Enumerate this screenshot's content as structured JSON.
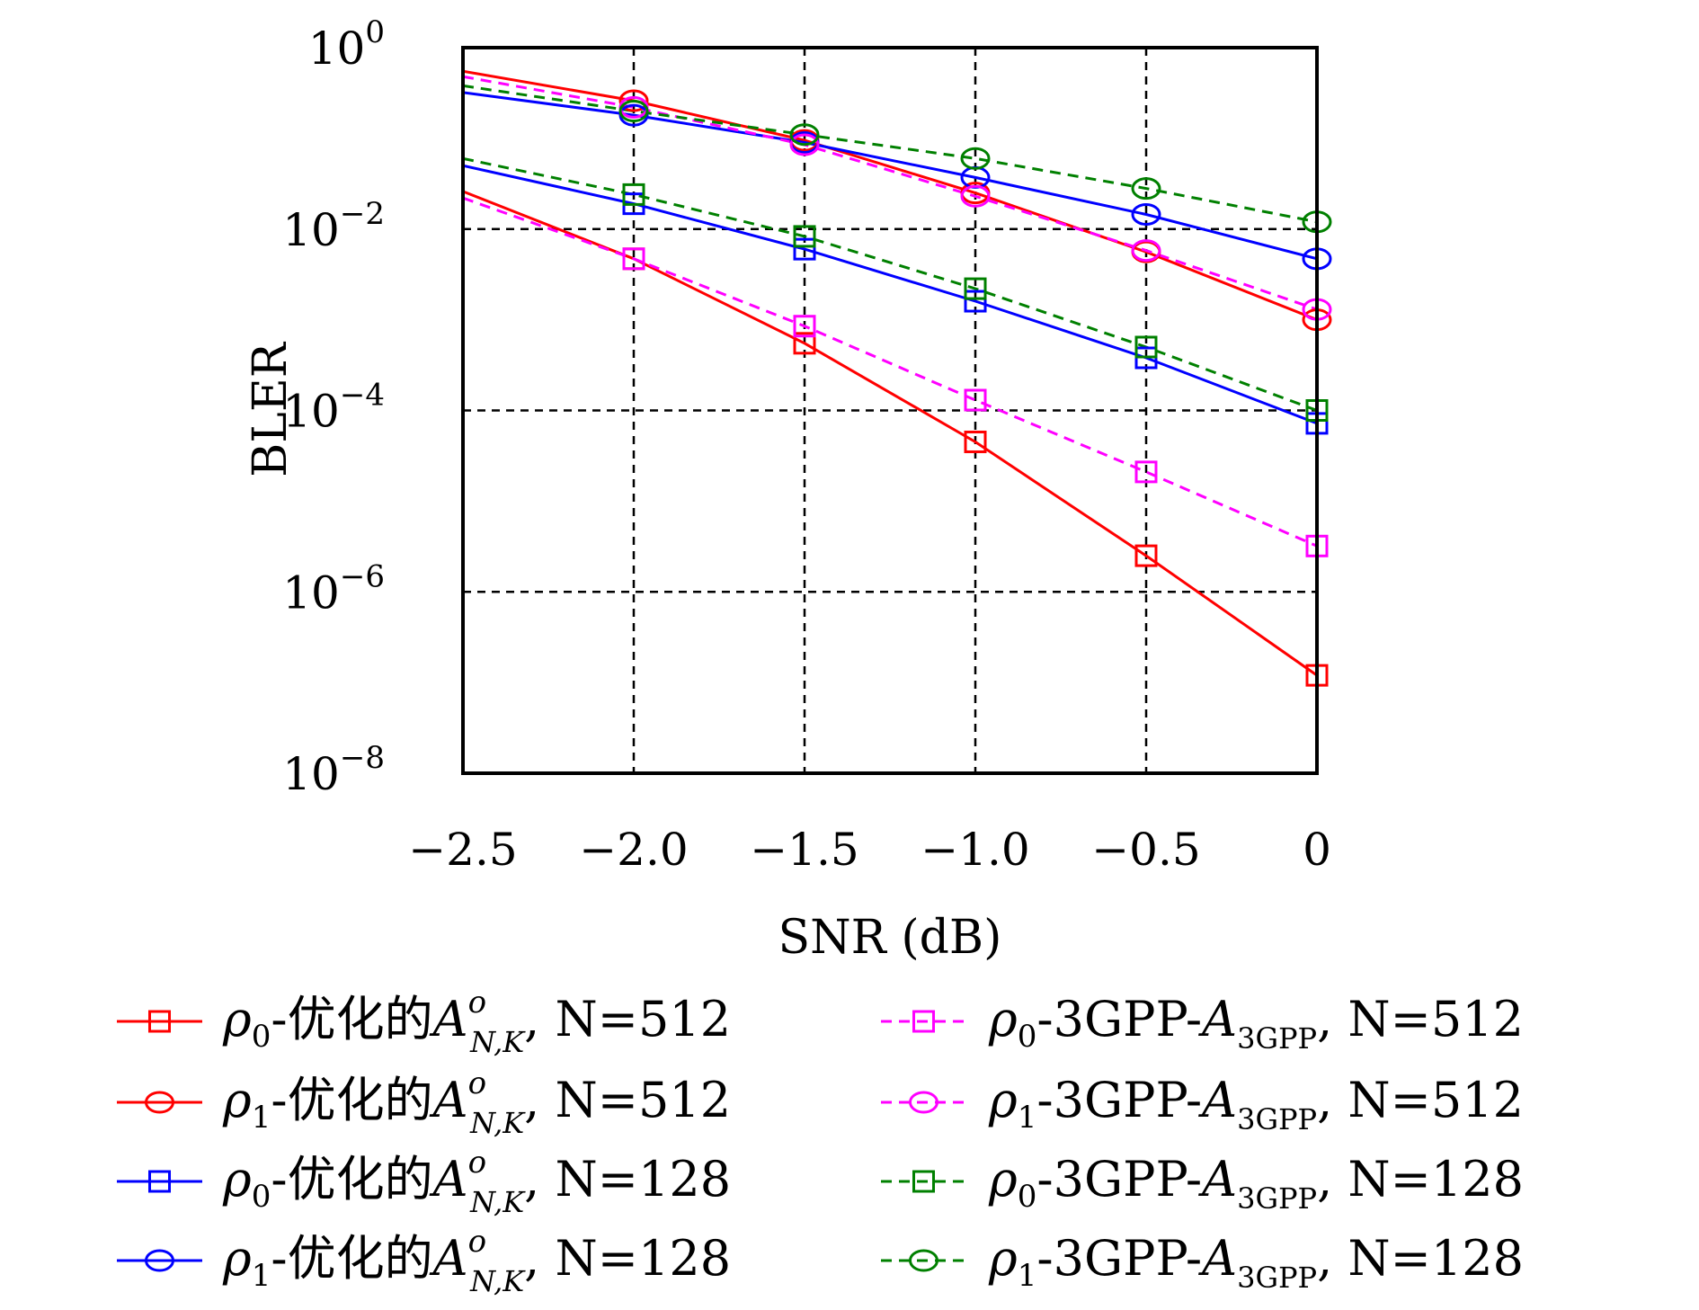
{
  "chart_data": {
    "type": "line",
    "xlabel": "SNR (dB)",
    "ylabel": "BLER",
    "xlim": [
      -2.5,
      0
    ],
    "ylim": [
      1e-08,
      1
    ],
    "yscale": "log",
    "grid": true,
    "legend_position": "bottom",
    "x_ticks": [
      "−2.5",
      "−2.0",
      "−1.5",
      "−1.0",
      "−0.5",
      "0"
    ],
    "y_ticks": [
      {
        "exp": 0,
        "label": "10",
        "sup": "0"
      },
      {
        "exp": -2,
        "label": "10",
        "sup": "−2"
      },
      {
        "exp": -4,
        "label": "10",
        "sup": "−4"
      },
      {
        "exp": -6,
        "label": "10",
        "sup": "−6"
      },
      {
        "exp": -8,
        "label": "10",
        "sup": "−8"
      }
    ],
    "series": [
      {
        "legend": {
          "rho": "0",
          "desc": "-优化的",
          "sym": "A",
          "sup": "o",
          "sub": "N,K",
          "tail": ", N=512"
        },
        "color": "#ff0000",
        "dash": false,
        "marker": "square",
        "x": [
          -2.5,
          -2.0,
          -1.5,
          -1.0,
          -0.5,
          0
        ],
        "y": [
          0.026,
          0.0047,
          0.00055,
          4.5e-05,
          2.5e-06,
          1.2e-07
        ]
      },
      {
        "legend": {
          "rho": "1",
          "desc": "-优化的",
          "sym": "A",
          "sup": "o",
          "sub": "N,K",
          "tail": ", N=512"
        },
        "color": "#ff0000",
        "dash": false,
        "marker": "circle",
        "x": [
          -2.5,
          -2.0,
          -1.5,
          -1.0,
          -0.5,
          0
        ],
        "y": [
          0.55,
          0.26,
          0.095,
          0.025,
          0.0056,
          0.001
        ]
      },
      {
        "legend": {
          "rho": "0",
          "desc": "-优化的",
          "sym": "A",
          "sup": "o",
          "sub": "N,K",
          "tail": ", N=128"
        },
        "color": "#0000ff",
        "dash": false,
        "marker": "square",
        "x": [
          -2.5,
          -2.0,
          -1.5,
          -1.0,
          -0.5,
          0
        ],
        "y": [
          0.05,
          0.019,
          0.006,
          0.0016,
          0.00038,
          7.2e-05
        ]
      },
      {
        "legend": {
          "rho": "1",
          "desc": "-优化的",
          "sym": "A",
          "sup": "o",
          "sub": "N,K",
          "tail": ", N=128"
        },
        "color": "#0000ff",
        "dash": false,
        "marker": "circle",
        "x": [
          -2.5,
          -2.0,
          -1.5,
          -1.0,
          -0.5,
          0
        ],
        "y": [
          0.32,
          0.18,
          0.09,
          0.037,
          0.0145,
          0.0047
        ]
      },
      {
        "legend": {
          "rho": "0",
          "desc": "-3GPP-",
          "sym": "A",
          "sup": "",
          "sub": "3GPP",
          "tail": ", N=512"
        },
        "color": "#ff00ff",
        "dash": true,
        "marker": "square",
        "x": [
          -2.5,
          -2.0,
          -1.5,
          -1.0,
          -0.5,
          0
        ],
        "y": [
          0.022,
          0.0047,
          0.00085,
          0.00013,
          2.1e-05,
          3.2e-06
        ]
      },
      {
        "legend": {
          "rho": "1",
          "desc": "-3GPP-",
          "sym": "A",
          "sup": "",
          "sub": "3GPP",
          "tail": ", N=512"
        },
        "color": "#ff00ff",
        "dash": true,
        "marker": "circle",
        "x": [
          -2.5,
          -2.0,
          -1.5,
          -1.0,
          -0.5,
          0
        ],
        "y": [
          0.48,
          0.22,
          0.085,
          0.023,
          0.0058,
          0.0013
        ]
      },
      {
        "legend": {
          "rho": "0",
          "desc": "-3GPP-",
          "sym": "A",
          "sup": "",
          "sub": "3GPP",
          "tail": ", N=128"
        },
        "color": "#008000",
        "dash": true,
        "marker": "square",
        "x": [
          -2.5,
          -2.0,
          -1.5,
          -1.0,
          -0.5,
          0
        ],
        "y": [
          0.06,
          0.024,
          0.0083,
          0.0022,
          0.0005,
          0.0001
        ]
      },
      {
        "legend": {
          "rho": "1",
          "desc": "-3GPP-",
          "sym": "A",
          "sup": "",
          "sub": "3GPP",
          "tail": ", N=128"
        },
        "color": "#008000",
        "dash": true,
        "marker": "circle",
        "x": [
          -2.5,
          -2.0,
          -1.5,
          -1.0,
          -0.5,
          0
        ],
        "y": [
          0.38,
          0.2,
          0.11,
          0.06,
          0.028,
          0.012
        ]
      }
    ]
  }
}
